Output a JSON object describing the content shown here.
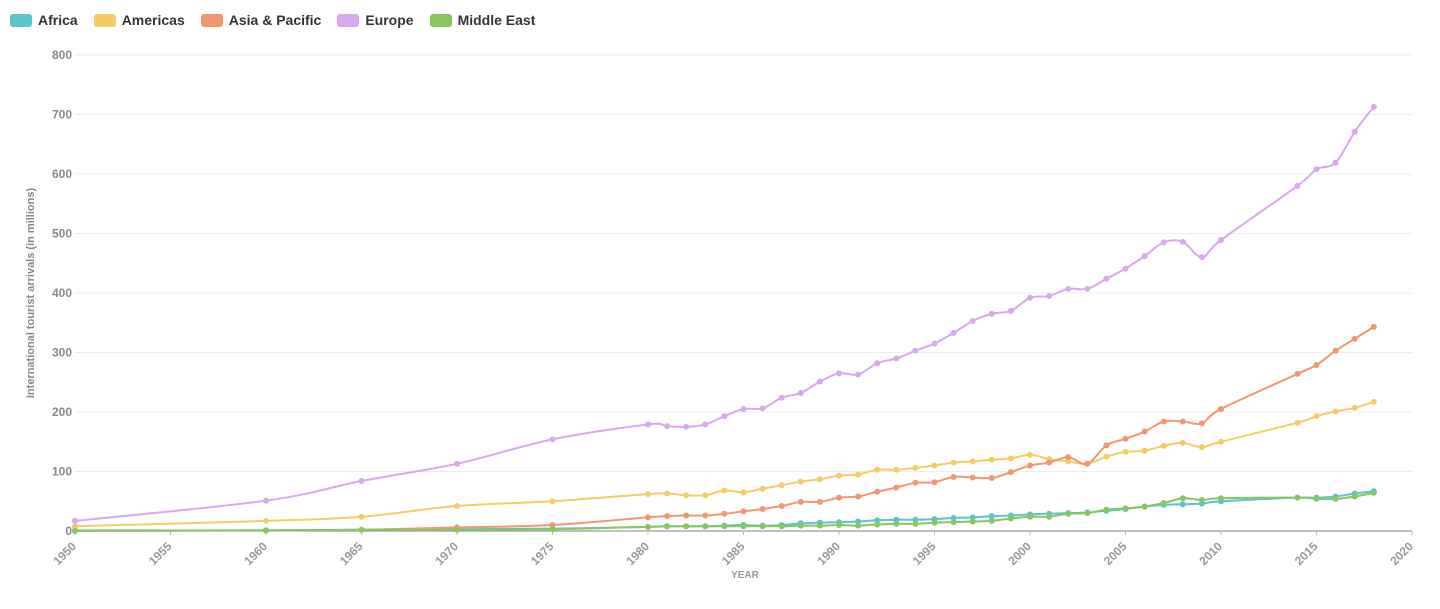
{
  "chart_data": {
    "type": "line",
    "xlabel": "YEAR",
    "ylabel": "International tourist arrivals (in millions)",
    "xlim": [
      1950,
      2020
    ],
    "ylim": [
      0,
      800
    ],
    "xticks": [
      1950,
      1955,
      1960,
      1965,
      1970,
      1975,
      1980,
      1985,
      1990,
      1995,
      2000,
      2005,
      2010,
      2015,
      2020
    ],
    "yticks": [
      0,
      100,
      200,
      300,
      400,
      500,
      600,
      700,
      800
    ],
    "grid": "horizontal",
    "legend_position": "top-left",
    "series": [
      {
        "name": "Africa",
        "color": "#5bc4cc",
        "points": [
          [
            1950,
            1
          ],
          [
            1960,
            1
          ],
          [
            1965,
            2
          ],
          [
            1970,
            3
          ],
          [
            1975,
            4
          ],
          [
            1980,
            7
          ],
          [
            1981,
            8
          ],
          [
            1982,
            8
          ],
          [
            1983,
            8
          ],
          [
            1984,
            9
          ],
          [
            1985,
            10
          ],
          [
            1986,
            9
          ],
          [
            1987,
            10
          ],
          [
            1988,
            13
          ],
          [
            1989,
            14
          ],
          [
            1990,
            15
          ],
          [
            1991,
            16
          ],
          [
            1992,
            18
          ],
          [
            1993,
            19
          ],
          [
            1994,
            19
          ],
          [
            1995,
            20
          ],
          [
            1996,
            22
          ],
          [
            1997,
            23
          ],
          [
            1998,
            25
          ],
          [
            1999,
            26
          ],
          [
            2000,
            28
          ],
          [
            2001,
            29
          ],
          [
            2002,
            30
          ],
          [
            2003,
            31
          ],
          [
            2004,
            34
          ],
          [
            2005,
            37
          ],
          [
            2006,
            41
          ],
          [
            2007,
            44
          ],
          [
            2008,
            45
          ],
          [
            2009,
            46
          ],
          [
            2010,
            50
          ],
          [
            2014,
            56
          ],
          [
            2015,
            56
          ],
          [
            2016,
            58
          ],
          [
            2017,
            63
          ],
          [
            2018,
            67
          ]
        ]
      },
      {
        "name": "Americas",
        "color": "#f4cc66",
        "points": [
          [
            1950,
            8
          ],
          [
            1960,
            17
          ],
          [
            1965,
            24
          ],
          [
            1970,
            42
          ],
          [
            1975,
            50
          ],
          [
            1980,
            62
          ],
          [
            1981,
            63
          ],
          [
            1982,
            60
          ],
          [
            1983,
            60
          ],
          [
            1984,
            68
          ],
          [
            1985,
            65
          ],
          [
            1986,
            71
          ],
          [
            1987,
            77
          ],
          [
            1988,
            83
          ],
          [
            1989,
            87
          ],
          [
            1990,
            93
          ],
          [
            1991,
            95
          ],
          [
            1992,
            103
          ],
          [
            1993,
            103
          ],
          [
            1994,
            106
          ],
          [
            1995,
            110
          ],
          [
            1996,
            115
          ],
          [
            1997,
            117
          ],
          [
            1998,
            120
          ],
          [
            1999,
            122
          ],
          [
            2000,
            128
          ],
          [
            2001,
            121
          ],
          [
            2002,
            117
          ],
          [
            2003,
            113
          ],
          [
            2004,
            125
          ],
          [
            2005,
            133
          ],
          [
            2006,
            135
          ],
          [
            2007,
            143
          ],
          [
            2008,
            148
          ],
          [
            2009,
            141
          ],
          [
            2010,
            150
          ],
          [
            2014,
            182
          ],
          [
            2015,
            193
          ],
          [
            2016,
            201
          ],
          [
            2017,
            207
          ],
          [
            2018,
            217
          ]
        ]
      },
      {
        "name": "Asia & Pacific",
        "color": "#f09772",
        "points": [
          [
            1950,
            0.2
          ],
          [
            1960,
            1
          ],
          [
            1965,
            2
          ],
          [
            1970,
            6
          ],
          [
            1975,
            10
          ],
          [
            1980,
            23
          ],
          [
            1981,
            25
          ],
          [
            1982,
            26
          ],
          [
            1983,
            26
          ],
          [
            1984,
            29
          ],
          [
            1985,
            33
          ],
          [
            1986,
            37
          ],
          [
            1987,
            42
          ],
          [
            1988,
            49
          ],
          [
            1989,
            49
          ],
          [
            1990,
            56
          ],
          [
            1991,
            58
          ],
          [
            1992,
            66
          ],
          [
            1993,
            73
          ],
          [
            1994,
            81
          ],
          [
            1995,
            82
          ],
          [
            1996,
            91
          ],
          [
            1997,
            90
          ],
          [
            1998,
            89
          ],
          [
            1999,
            99
          ],
          [
            2000,
            110
          ],
          [
            2001,
            115
          ],
          [
            2002,
            124
          ],
          [
            2003,
            113
          ],
          [
            2004,
            144
          ],
          [
            2005,
            155
          ],
          [
            2006,
            167
          ],
          [
            2007,
            184
          ],
          [
            2008,
            184
          ],
          [
            2009,
            181
          ],
          [
            2010,
            205
          ],
          [
            2014,
            264
          ],
          [
            2015,
            279
          ],
          [
            2016,
            303
          ],
          [
            2017,
            323
          ],
          [
            2018,
            343
          ]
        ]
      },
      {
        "name": "Europe",
        "color": "#d9a8ef",
        "points": [
          [
            1950,
            17
          ],
          [
            1960,
            51
          ],
          [
            1965,
            84
          ],
          [
            1970,
            113
          ],
          [
            1975,
            154
          ],
          [
            1980,
            179
          ],
          [
            1981,
            176
          ],
          [
            1982,
            175
          ],
          [
            1983,
            179
          ],
          [
            1984,
            193
          ],
          [
            1985,
            205
          ],
          [
            1986,
            206
          ],
          [
            1987,
            224
          ],
          [
            1988,
            232
          ],
          [
            1989,
            251
          ],
          [
            1990,
            265
          ],
          [
            1991,
            263
          ],
          [
            1992,
            282
          ],
          [
            1993,
            290
          ],
          [
            1994,
            303
          ],
          [
            1995,
            315
          ],
          [
            1996,
            333
          ],
          [
            1997,
            353
          ],
          [
            1998,
            365
          ],
          [
            1999,
            370
          ],
          [
            2000,
            392
          ],
          [
            2001,
            395
          ],
          [
            2002,
            407
          ],
          [
            2003,
            407
          ],
          [
            2004,
            424
          ],
          [
            2005,
            441
          ],
          [
            2006,
            462
          ],
          [
            2007,
            485
          ],
          [
            2008,
            486
          ],
          [
            2009,
            460
          ],
          [
            2010,
            489
          ],
          [
            2014,
            580
          ],
          [
            2015,
            608
          ],
          [
            2016,
            619
          ],
          [
            2017,
            671
          ],
          [
            2018,
            713
          ]
        ]
      },
      {
        "name": "Middle East",
        "color": "#86c760",
        "points": [
          [
            1950,
            0.2
          ],
          [
            1960,
            1
          ],
          [
            1965,
            2
          ],
          [
            1970,
            2
          ],
          [
            1975,
            3
          ],
          [
            1980,
            7
          ],
          [
            1981,
            8
          ],
          [
            1982,
            8
          ],
          [
            1983,
            8
          ],
          [
            1984,
            8
          ],
          [
            1985,
            8
          ],
          [
            1986,
            8
          ],
          [
            1987,
            8
          ],
          [
            1988,
            9
          ],
          [
            1989,
            9
          ],
          [
            1990,
            10
          ],
          [
            1991,
            9
          ],
          [
            1992,
            11
          ],
          [
            1993,
            12
          ],
          [
            1994,
            12
          ],
          [
            1995,
            14
          ],
          [
            1996,
            15
          ],
          [
            1997,
            16
          ],
          [
            1998,
            17
          ],
          [
            1999,
            21
          ],
          [
            2000,
            24
          ],
          [
            2001,
            24
          ],
          [
            2002,
            29
          ],
          [
            2003,
            30
          ],
          [
            2004,
            36
          ],
          [
            2005,
            38
          ],
          [
            2006,
            41
          ],
          [
            2007,
            47
          ],
          [
            2008,
            55
          ],
          [
            2009,
            52
          ],
          [
            2010,
            55
          ],
          [
            2014,
            56
          ],
          [
            2015,
            54
          ],
          [
            2016,
            54
          ],
          [
            2017,
            58
          ],
          [
            2018,
            64
          ]
        ]
      }
    ]
  }
}
